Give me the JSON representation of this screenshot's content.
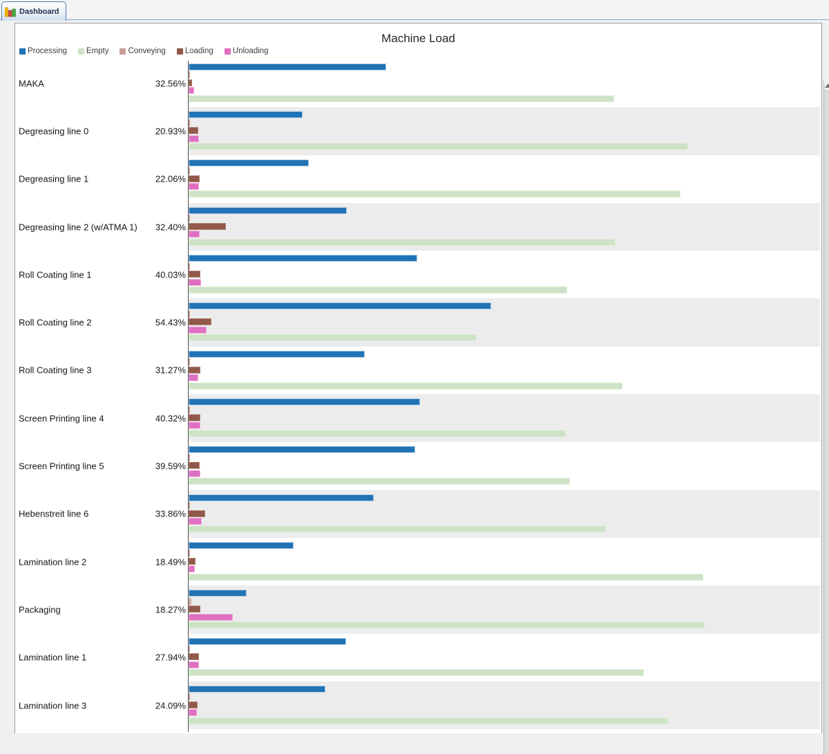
{
  "tab": {
    "label": "Dashboard"
  },
  "chart_data": {
    "type": "bar",
    "orientation": "horizontal",
    "title": "Machine Load",
    "xlim": [
      0,
      100
    ],
    "unit": "percent",
    "grid": false,
    "legend_position": "top-left",
    "bar_draw_order": [
      "Processing",
      "Conveying",
      "Loading",
      "Unloading",
      "Empty"
    ],
    "categories": [
      "MAKA",
      "Degreasing line 0",
      "Degreasing line 1",
      "Degreasing line 2 (w/ATMA 1)",
      "Roll Coating line 1",
      "Roll Coating line 2",
      "Roll Coating line 3",
      "Screen Printing line 4",
      "Screen Printing line 5",
      "Hebenstreit line 6",
      "Lamination line 2",
      "Packaging",
      "Lamination line 1",
      "Lamination line 3"
    ],
    "value_labels": [
      "32.56%",
      "20.93%",
      "22.06%",
      "32.40%",
      "40.03%",
      "54.43%",
      "31.27%",
      "40.32%",
      "39.59%",
      "33.86%",
      "18.49%",
      "18.27%",
      "27.94%",
      "24.09%"
    ],
    "series": [
      {
        "name": "Processing",
        "color": "#2173b4",
        "values": [
          31.3,
          18.1,
          19.0,
          25.0,
          36.2,
          47.9,
          27.9,
          36.7,
          35.9,
          29.3,
          16.6,
          9.2,
          24.9,
          21.7
        ]
      },
      {
        "name": "Empty",
        "color": "#cde2c6",
        "values": [
          67.4,
          79.1,
          77.9,
          67.6,
          60.0,
          45.6,
          68.7,
          59.7,
          60.4,
          66.1,
          81.5,
          81.7,
          72.1,
          75.9
        ]
      },
      {
        "name": "Conveying",
        "color": "#c79f97",
        "values": [
          0.2,
          0.1,
          0.1,
          0.1,
          0.1,
          0.1,
          0.1,
          0.1,
          0.1,
          0.1,
          0.1,
          0.45,
          0.1,
          0.1
        ]
      },
      {
        "name": "Loading",
        "color": "#915949",
        "values": [
          0.6,
          1.5,
          1.7,
          5.9,
          1.85,
          3.6,
          1.9,
          1.85,
          1.7,
          2.6,
          1.1,
          1.9,
          1.65,
          1.4
        ]
      },
      {
        "name": "Unloading",
        "color": "#df6fc1",
        "values": [
          0.85,
          1.6,
          1.6,
          1.8,
          2.0,
          2.85,
          1.5,
          1.9,
          1.9,
          2.1,
          1.0,
          7.0,
          1.65,
          1.3
        ]
      }
    ]
  }
}
